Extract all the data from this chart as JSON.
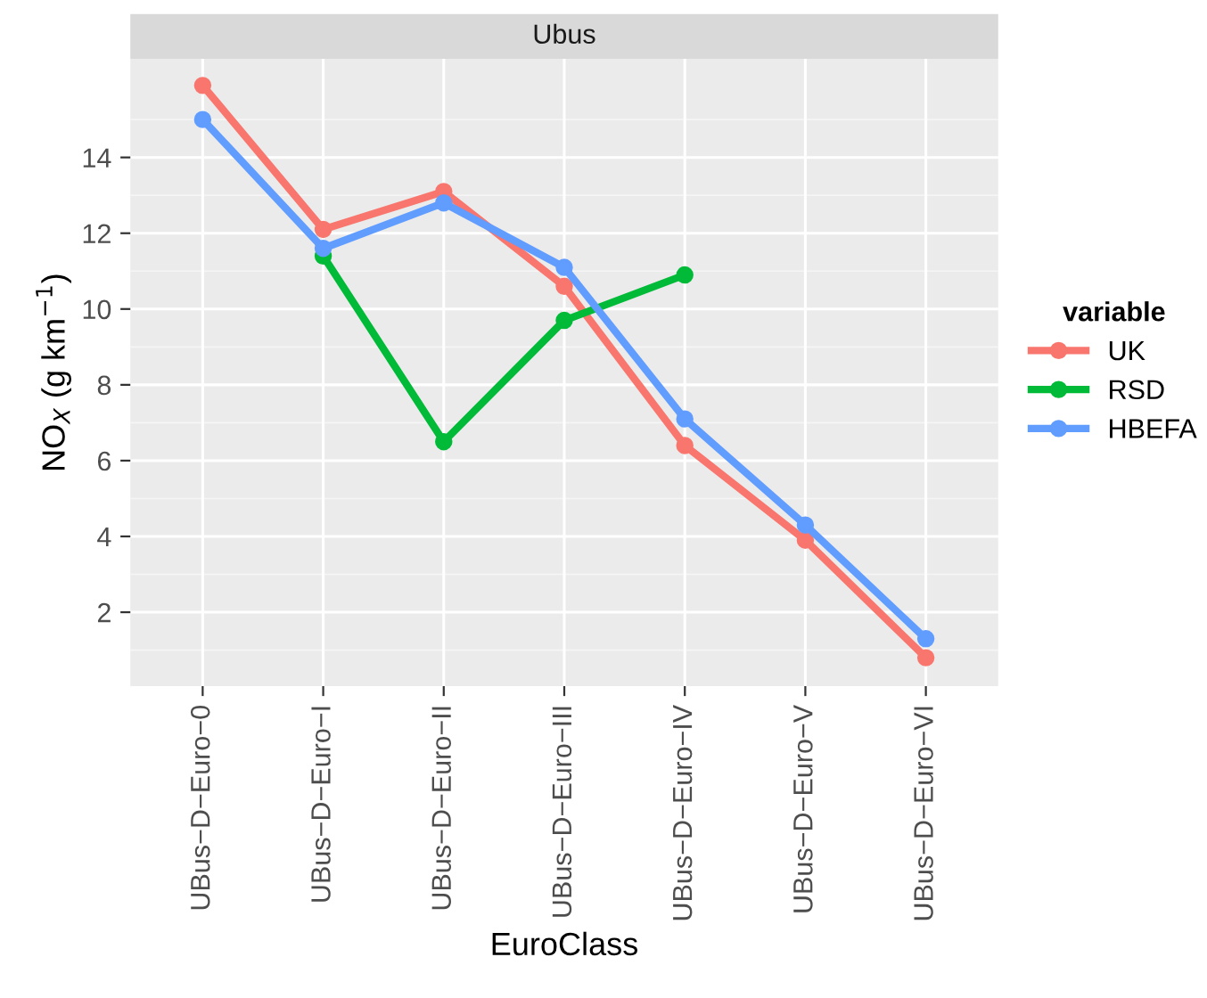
{
  "chart_data": {
    "type": "line",
    "title": "Ubus",
    "xlabel": "EuroClass",
    "ylabel": "NO$_{X}$ (g km$^{−1}$)",
    "legend_title": "variable",
    "categories": [
      "UBus−D−Euro−0",
      "UBus−D−Euro−I",
      "UBus−D−Euro−II",
      "UBus−D−Euro−III",
      "UBus−D−Euro−IV",
      "UBus−D−Euro−V",
      "UBus−D−Euro−VI"
    ],
    "series": [
      {
        "name": "UK",
        "color": "#f8766d",
        "values": [
          15.9,
          12.1,
          13.1,
          10.6,
          6.4,
          3.9,
          0.8
        ]
      },
      {
        "name": "RSD",
        "color": "#00ba38",
        "values": [
          null,
          11.4,
          6.5,
          9.7,
          10.9,
          null,
          null
        ]
      },
      {
        "name": "HBEFA",
        "color": "#619cff",
        "values": [
          15.0,
          11.6,
          12.8,
          11.1,
          7.1,
          4.3,
          1.3
        ]
      }
    ],
    "ylim": [
      0.05,
      16.6
    ],
    "yticks": [
      2,
      4,
      6,
      8,
      10,
      12,
      14
    ],
    "grid": true,
    "legend": "right",
    "marker": "circle",
    "line_style": "solid"
  }
}
